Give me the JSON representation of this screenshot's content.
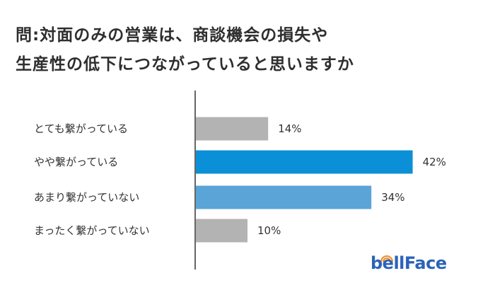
{
  "title_lines": [
    "問:対面のみの営業は、商談機会の損失や",
    "生産性の低下につながっていると思いますか"
  ],
  "logo_text": "bellFace",
  "colors": {
    "gray": "#b3b3b3",
    "blue_dark": "#0b8fd6",
    "blue_light": "#5ba4d8",
    "axis": "#333333",
    "logo": "#2b63b8",
    "logo_accent": "#f08a24"
  },
  "chart_data": {
    "type": "bar",
    "orientation": "horizontal",
    "categories": [
      "とても繋がっている",
      "やや繋がっている",
      "あまり繋がっていない",
      "まったく繋がっていない"
    ],
    "values": [
      14,
      42,
      34,
      10
    ],
    "value_labels": [
      "14%",
      "42%",
      "34%",
      "10%"
    ],
    "bar_colors": [
      "#b3b3b3",
      "#0b8fd6",
      "#5ba4d8",
      "#b3b3b3"
    ],
    "xlim": [
      0,
      45
    ],
    "grid": false,
    "legend": "none"
  }
}
